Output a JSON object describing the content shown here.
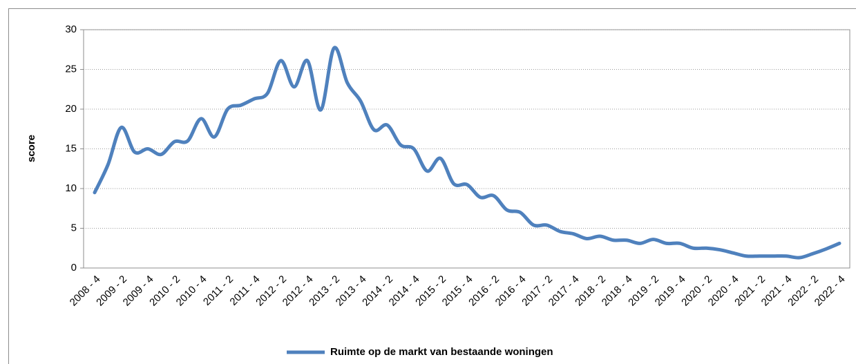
{
  "chart_data": {
    "type": "line",
    "y_label": "score",
    "categories": [
      "2008 - 4",
      null,
      "2009 - 2",
      null,
      "2009 - 4",
      null,
      "2010 - 2",
      null,
      "2010 - 4",
      null,
      "2011 - 2",
      null,
      "2011 - 4",
      null,
      "2012 - 2",
      null,
      "2012 - 4",
      null,
      "2013 - 2",
      null,
      "2013 - 4",
      null,
      "2014 - 2",
      null,
      "2014 - 4",
      null,
      "2015 - 2",
      null,
      "2015 - 4",
      null,
      "2016 - 2",
      null,
      "2016 - 4",
      null,
      "2017 - 2",
      null,
      "2017 - 4",
      null,
      "2018 - 2",
      null,
      "2018 - 4",
      null,
      "2019 - 2",
      null,
      "2019 - 4",
      null,
      "2020 - 2",
      null,
      "2020 - 4",
      null,
      "2021 - 2",
      null,
      "2021 - 4",
      null,
      "2022 - 2",
      null,
      "2022 - 4"
    ],
    "series": [
      {
        "name": "Ruimte op de markt van bestaande woningen",
        "color": "#4f81bd",
        "values": [
          9.5,
          13,
          17.7,
          14.6,
          15,
          14.3,
          15.9,
          16,
          18.8,
          16.5,
          20,
          20.5,
          21.3,
          22,
          26.1,
          22.8,
          26.1,
          19.9,
          27.7,
          23.3,
          21,
          17.4,
          18,
          15.5,
          15,
          12.2,
          13.8,
          10.6,
          10.5,
          8.9,
          9.1,
          7.3,
          7,
          5.4,
          5.4,
          4.6,
          4.3,
          3.7,
          4,
          3.5,
          3.5,
          3.1,
          3.6,
          3.1,
          3.1,
          2.5,
          2.5,
          2.3,
          1.9,
          1.5,
          1.5,
          1.5,
          1.5,
          1.3,
          1.8,
          2.4,
          3.1
        ]
      }
    ],
    "ylim": [
      0,
      30
    ],
    "yticks": [
      0,
      5,
      10,
      15,
      20,
      25,
      30
    ],
    "grid": true,
    "smooth": true,
    "legend": "bottom"
  }
}
